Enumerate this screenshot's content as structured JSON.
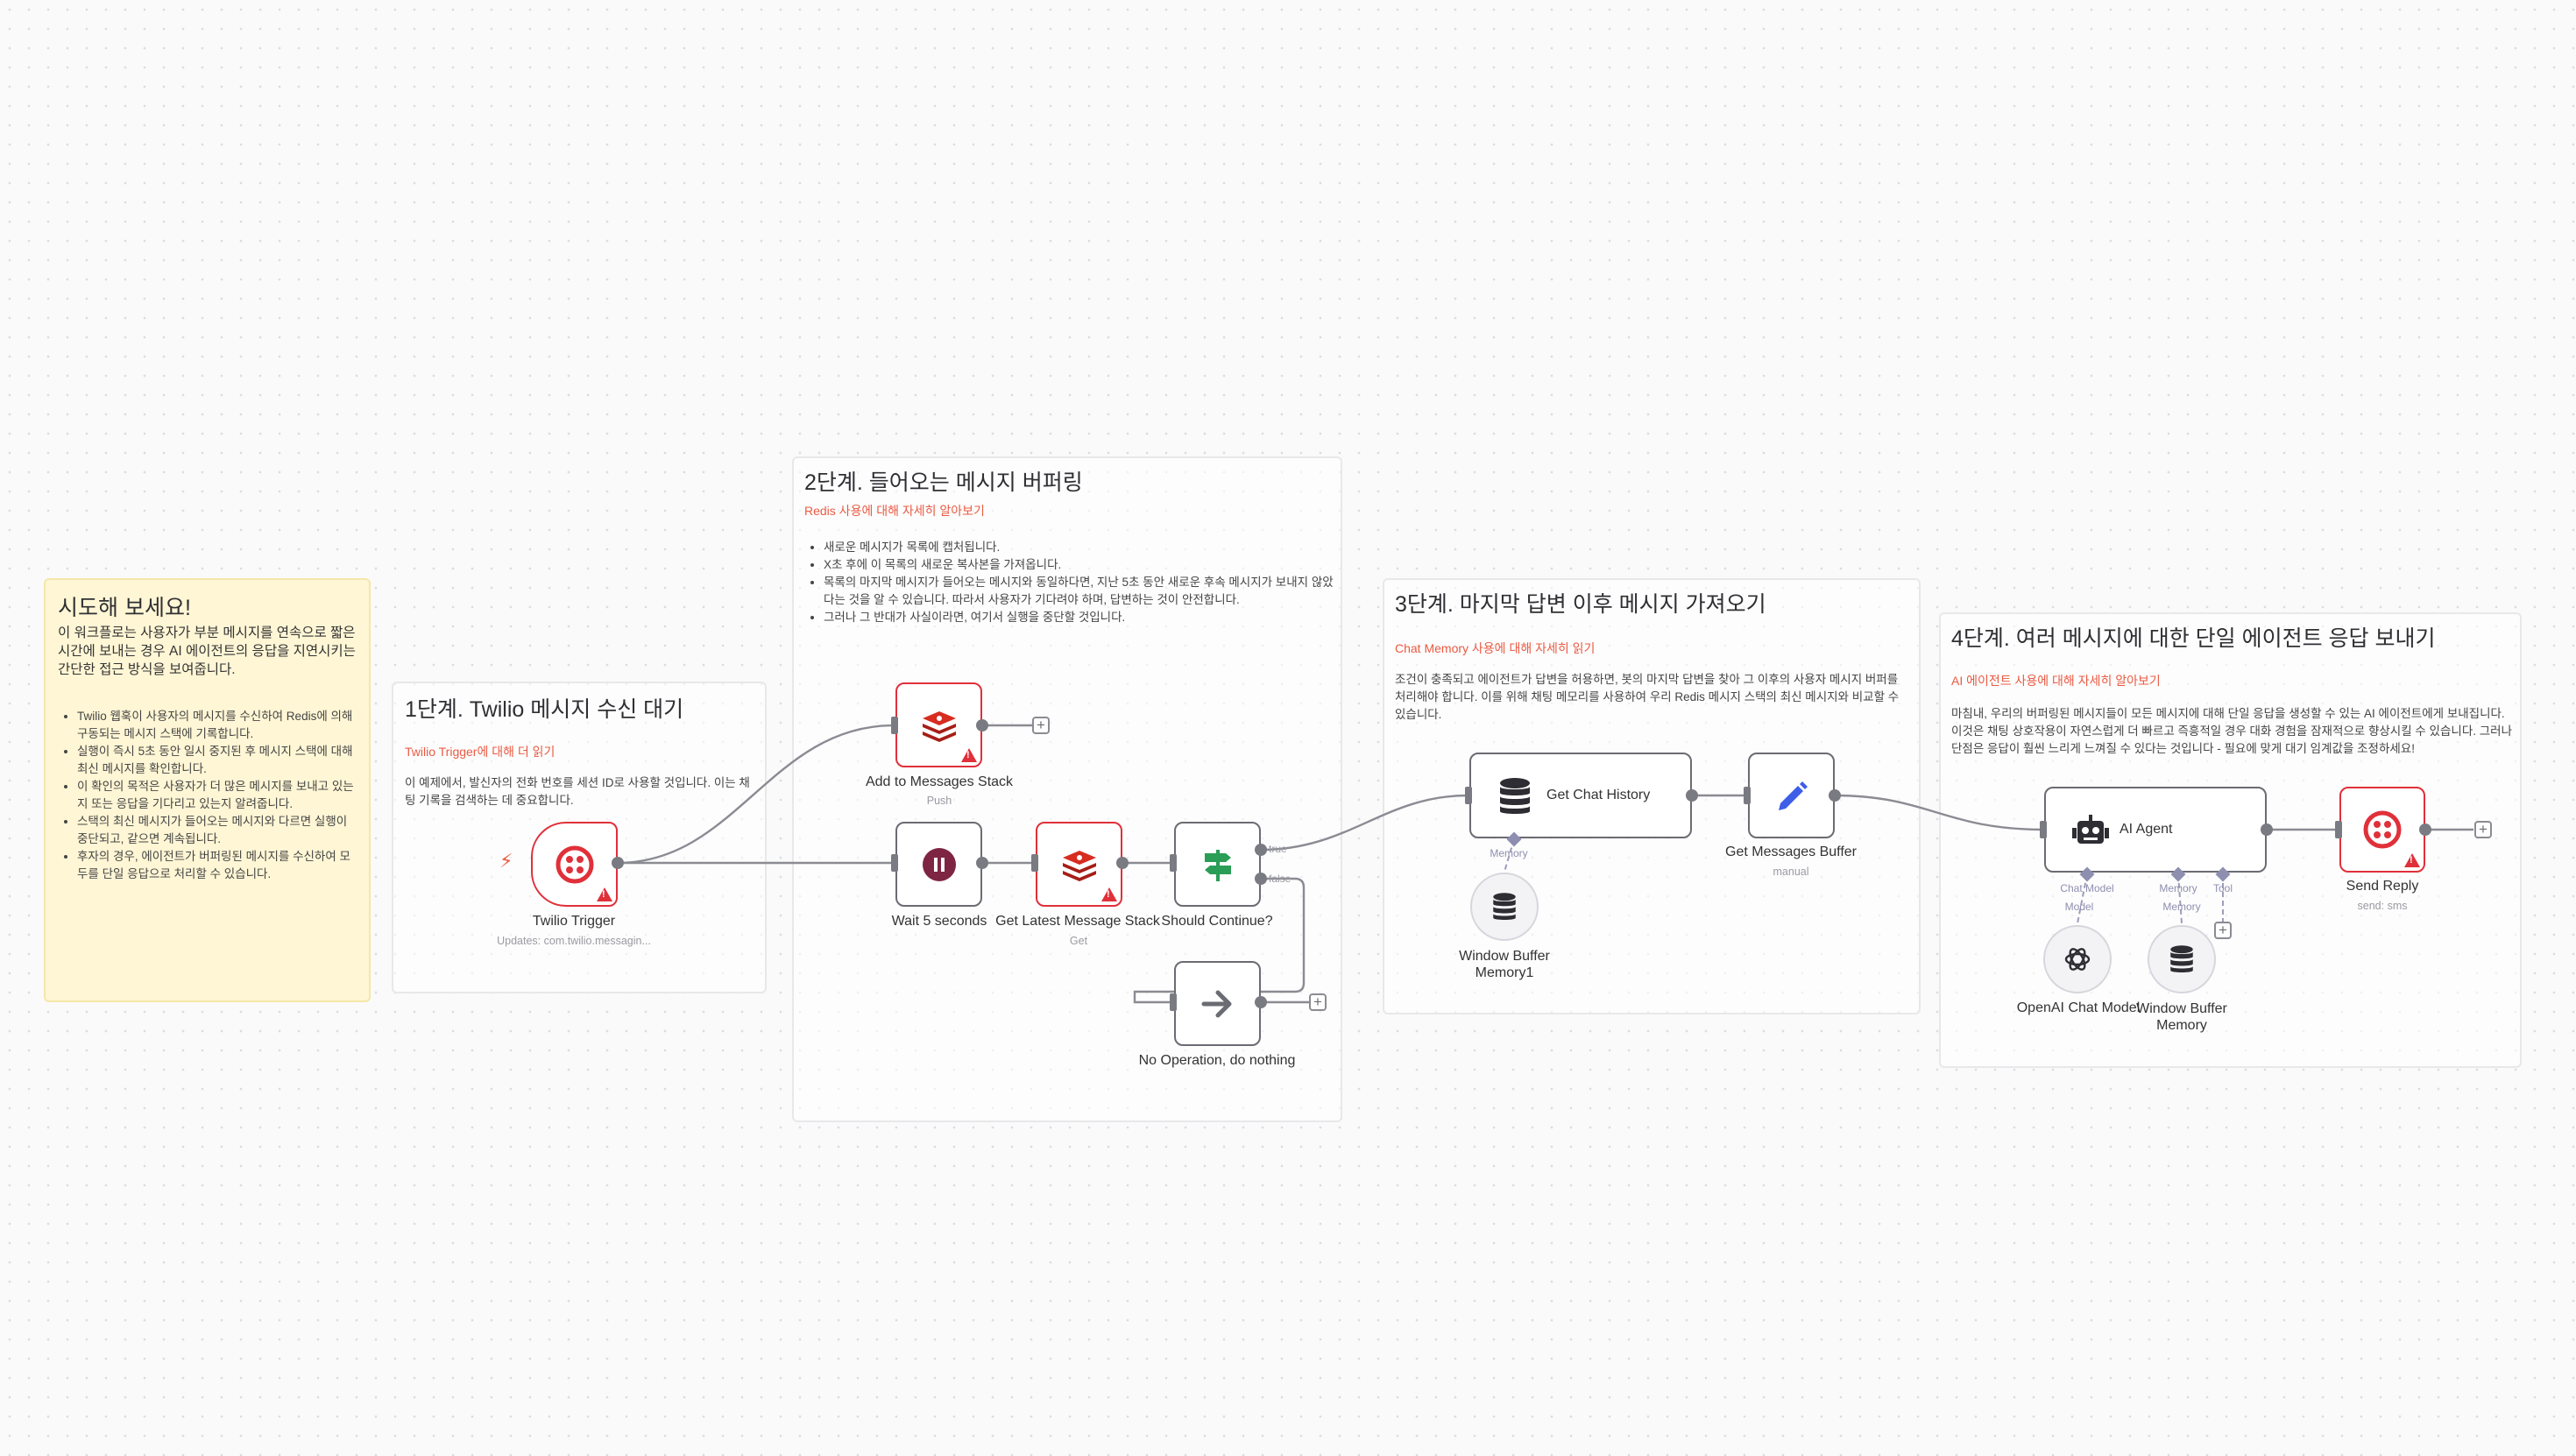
{
  "notes": {
    "try_it": {
      "title": "시도해 보세요!",
      "intro": "이 워크플로는 사용자가 부분 메시지를 연속으로 짧은 시간에 보내는 경우 AI 에이전트의 응답을 지연시키는 간단한 접근 방식을 보여줍니다.",
      "bullets": [
        "Twilio 웹훅이 사용자의 메시지를 수신하여 Redis에 의해 구동되는 메시지 스택에 기록합니다.",
        "실행이 즉시 5초 동안 일시 중지된 후 메시지 스택에 대해 최신 메시지를 확인합니다.",
        "이 확인의 목적은 사용자가 더 많은 메시지를 보내고 있는지 또는 응답을 기다리고 있는지 알려줍니다.",
        "스택의 최신 메시지가 들어오는 메시지와 다르면 실행이 중단되고, 같으면 계속됩니다.",
        "후자의 경우, 에이전트가 버퍼링된 메시지를 수신하여 모두를 단일 응답으로 처리할 수 있습니다."
      ]
    },
    "step1": {
      "title": "1단계. Twilio 메시지 수신 대기",
      "link": "Twilio Trigger에 대해 더 읽기",
      "text": "이 예제에서, 발신자의 전화 번호를 세션 ID로 사용할 것입니다. 이는 채팅 기록을 검색하는 데 중요합니다."
    },
    "step2": {
      "title": "2단계. 들어오는 메시지 버퍼링",
      "link": "Redis 사용에 대해 자세히 알아보기",
      "bullets": [
        "새로운 메시지가 목록에 캡처됩니다.",
        "X초 후에 이 목록의 새로운 복사본을 가져옵니다.",
        "목록의 마지막 메시지가 들어오는 메시지와 동일하다면, 지난 5초 동안 새로운 후속 메시지가 보내지 않았다는 것을 알 수 있습니다. 따라서 사용자가 기다려야 하며, 답변하는 것이 안전합니다.",
        "그러나 그 반대가 사실이라면, 여기서 실행을 중단할 것입니다."
      ]
    },
    "step3": {
      "title": "3단계. 마지막 답변 이후 메시지 가져오기",
      "link": "Chat Memory 사용에 대해 자세히 읽기",
      "text": "조건이 충족되고 에이전트가 답변을 허용하면, 봇의 마지막 답변을 찾아 그 이후의 사용자 메시지 버퍼를 처리해야 합니다. 이를 위해 채팅 메모리를 사용하여 우리 Redis 메시지 스택의 최신 메시지와 비교할 수 있습니다."
    },
    "step4": {
      "title": "4단계. 여러 메시지에 대한 단일 에이전트 응답 보내기",
      "link": "AI 에이전트 사용에 대해 자세히 알아보기",
      "text": "마침내, 우리의 버퍼링된 메시지들이 모든 메시지에 대해 단일 응답을 생성할 수 있는 AI 에이전트에게 보내집니다. 이것은 채팅 상호작용이 자연스럽게 더 빠르고 즉흥적일 경우 대화 경험을 잠재적으로 향상시킬 수 있습니다. 그러나 단점은 응답이 훨씬 느리게 느껴질 수 있다는 것입니다 - 필요에 맞게 대기 임계값을 조정하세요!"
    }
  },
  "nodes": {
    "twilio_trigger": {
      "label": "Twilio Trigger",
      "sub": "Updates: com.twilio.messagin...",
      "icon": "twilio-icon"
    },
    "add_stack": {
      "label": "Add to Messages Stack",
      "sub": "Push",
      "icon": "redis-icon"
    },
    "wait": {
      "label": "Wait 5 seconds",
      "icon": "pause-icon"
    },
    "get_latest": {
      "label": "Get Latest Message Stack",
      "sub": "Get",
      "icon": "redis-icon"
    },
    "should_continue": {
      "label": "Should Continue?",
      "icon": "signpost-icon",
      "true_label": "true",
      "false_label": "false"
    },
    "no_op": {
      "label": "No Operation, do nothing",
      "icon": "arrow-right-icon"
    },
    "get_chat_history": {
      "label": "Get Chat History",
      "icon": "database-icon",
      "port_label": "Memory"
    },
    "window_buffer_1": {
      "label_line1": "Window Buffer",
      "label_line2": "Memory1",
      "icon": "database-icon"
    },
    "get_messages_buffer": {
      "label": "Get Messages Buffer",
      "sub": "manual",
      "icon": "pencil-icon"
    },
    "ai_agent": {
      "label": "AI Agent",
      "icon": "robot-icon",
      "port_chat_model": "Chat Model",
      "port_memory": "Memory",
      "port_tool": "Tool"
    },
    "openai_model": {
      "label": "OpenAI Chat Model",
      "icon": "openai-icon",
      "sub": "Model"
    },
    "window_buffer_2": {
      "label_line1": "Window Buffer",
      "label_line2": "Memory",
      "icon": "database-icon",
      "sub": "Memory"
    },
    "send_reply": {
      "label": "Send Reply",
      "sub": "send: sms",
      "icon": "twilio-icon"
    }
  },
  "colors": {
    "alert": "#e0303a",
    "link": "#ea5a43",
    "note_yellow": "#fff6d5",
    "wire": "#8b8b93",
    "redis": "#d82c20",
    "wait": "#7d2542",
    "if_green": "#2a9d56",
    "pencil": "#3e5ee8"
  }
}
